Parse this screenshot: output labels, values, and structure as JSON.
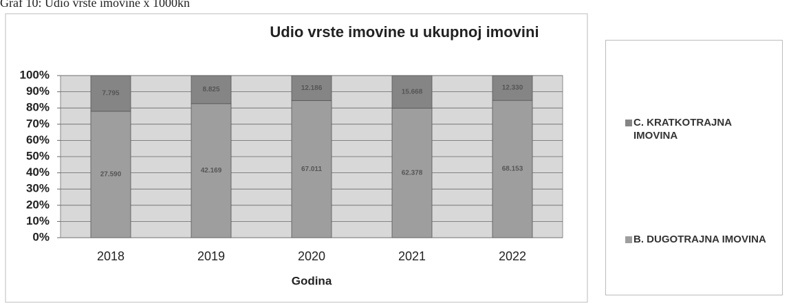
{
  "caption": "Graf 10: Udio vrste imovine x 1000kn",
  "chart_data": {
    "type": "bar",
    "stacking": "percent",
    "title": "Udio vrste imovine u ukupnoj imovini",
    "x_label": "Godina",
    "categories": [
      "2018",
      "2019",
      "2020",
      "2021",
      "2022"
    ],
    "series": [
      {
        "name": "B. DUGOTRAJNA IMOVINA",
        "color": "#9e9e9e",
        "values": [
          27590,
          42169,
          67011,
          62378,
          68153
        ],
        "value_labels": [
          "27.590",
          "42.169",
          "67.011",
          "62.378",
          "68.153"
        ]
      },
      {
        "name": "C. KRATKOTRAJNA IMOVINA",
        "color": "#858585",
        "values": [
          7795,
          8825,
          12186,
          15668,
          12330
        ],
        "value_labels": [
          "7.795",
          "8.825",
          "12.186",
          "15.668",
          "12.330"
        ]
      }
    ],
    "ylim": [
      0,
      100
    ],
    "yticks": [
      {
        "value": 0,
        "label": "0%"
      },
      {
        "value": 10,
        "label": "10%"
      },
      {
        "value": 20,
        "label": "20%"
      },
      {
        "value": 30,
        "label": "30%"
      },
      {
        "value": 40,
        "label": "40%"
      },
      {
        "value": 50,
        "label": "50%"
      },
      {
        "value": 60,
        "label": "60%"
      },
      {
        "value": 70,
        "label": "70%"
      },
      {
        "value": 80,
        "label": "80%"
      },
      {
        "value": 90,
        "label": "90%"
      },
      {
        "value": 100,
        "label": "100%"
      }
    ],
    "grid": true
  }
}
